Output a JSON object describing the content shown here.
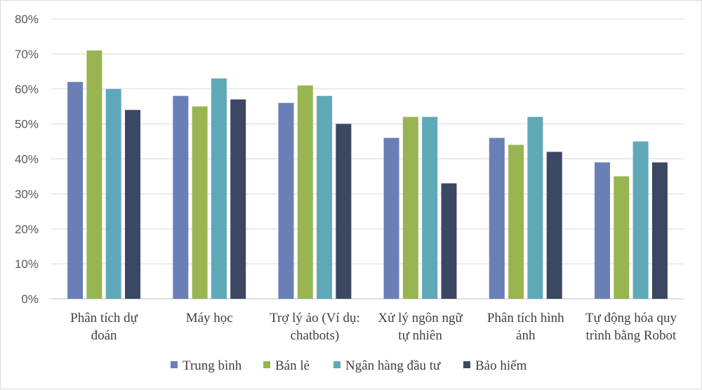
{
  "chart_data": {
    "type": "bar",
    "categories": [
      [
        "Phân tích dự",
        "đoán"
      ],
      [
        "Máy học"
      ],
      [
        "Trợ lý ảo (Ví dụ:",
        "chatbots)"
      ],
      [
        "Xử lý ngôn ngữ",
        "tự nhiên"
      ],
      [
        "Phân tích hình",
        "ảnh"
      ],
      [
        "Tự động hóa quy",
        "trình bằng Robot"
      ]
    ],
    "series": [
      {
        "name": "Trung bình",
        "color": "#6a7fb5",
        "values": [
          62,
          58,
          56,
          46,
          46,
          39
        ]
      },
      {
        "name": "Bán lẻ",
        "color": "#98b552",
        "values": [
          71,
          55,
          61,
          52,
          44,
          35
        ]
      },
      {
        "name": "Ngân hàng đầu tư",
        "color": "#5fa8b8",
        "values": [
          60,
          63,
          58,
          52,
          52,
          45
        ]
      },
      {
        "name": "Bảo hiểm",
        "color": "#3c4763",
        "values": [
          54,
          57,
          50,
          33,
          42,
          39
        ]
      }
    ],
    "yticks": [
      "0%",
      "10%",
      "20%",
      "30%",
      "40%",
      "50%",
      "60%",
      "70%",
      "80%"
    ],
    "ylim": [
      0,
      80
    ],
    "grid": true,
    "legend_position": "bottom"
  }
}
